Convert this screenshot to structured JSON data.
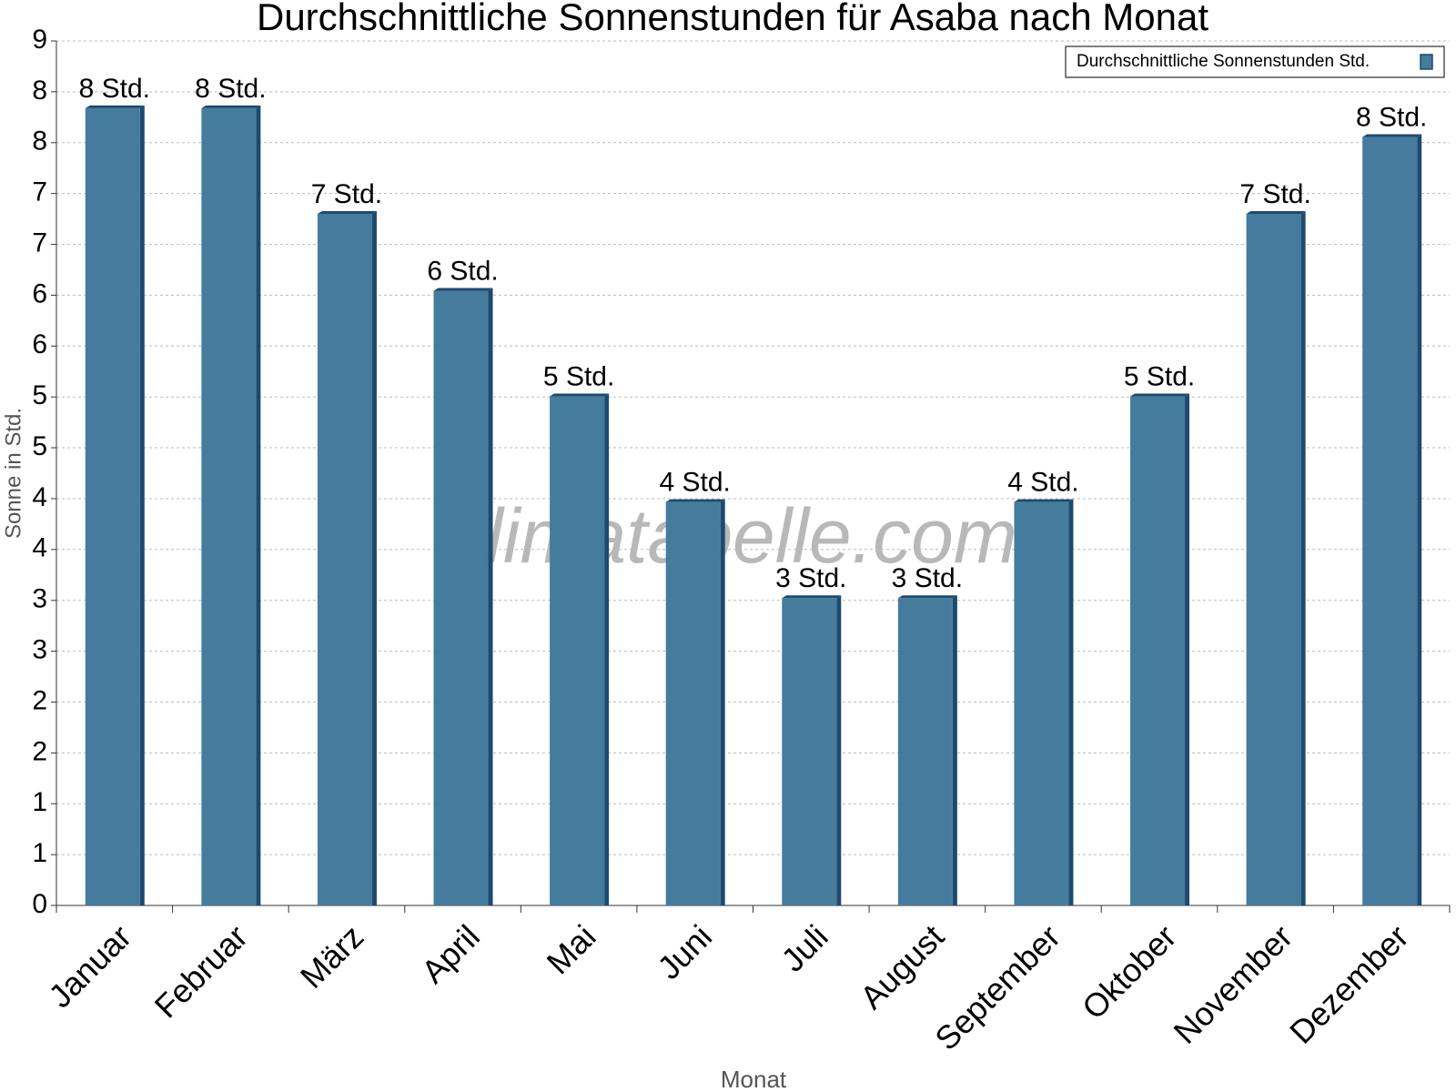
{
  "chart_data": {
    "type": "bar",
    "title": "Durchschnittliche Sonnenstunden für Asaba nach Monat",
    "x_label": "Monat",
    "y_label": "Sonne in Std.",
    "watermark": "klimatabelle.com",
    "categories": [
      "Januar",
      "Februar",
      "März",
      "April",
      "Mai",
      "Juni",
      "Juli",
      "August",
      "September",
      "Oktober",
      "November",
      "Dezember"
    ],
    "series": [
      {
        "name": "Durchschnittliche Sonnenstunden Std.",
        "color": "#457b9d",
        "values": [
          8.3,
          8.3,
          7.2,
          6.4,
          5.3,
          4.2,
          3.2,
          3.2,
          4.2,
          5.3,
          7.2,
          8.0
        ],
        "value_labels": [
          "8 Std.",
          "8 Std.",
          "7 Std.",
          "6 Std.",
          "5 Std.",
          "4 Std.",
          "3 Std.",
          "3 Std.",
          "4 Std.",
          "5 Std.",
          "7 Std.",
          "8 Std."
        ]
      }
    ],
    "ylim": [
      0,
      9
    ],
    "yticks": [
      0,
      {
        "value": 0.529,
        "label": "1"
      },
      {
        "value": 1.059,
        "label": "1"
      },
      {
        "value": 1.588,
        "label": "2"
      },
      {
        "value": 2.118,
        "label": "2"
      },
      {
        "value": 2.647,
        "label": "3"
      },
      {
        "value": 3.176,
        "label": "3"
      },
      {
        "value": 3.706,
        "label": "4"
      },
      {
        "value": 4.235,
        "label": "4"
      },
      {
        "value": 4.765,
        "label": "5"
      },
      {
        "value": 5.294,
        "label": "5"
      },
      {
        "value": 5.824,
        "label": "6"
      },
      {
        "value": 6.353,
        "label": "6"
      },
      {
        "value": 6.882,
        "label": "7"
      },
      {
        "value": 7.412,
        "label": "7"
      },
      {
        "value": 7.941,
        "label": "8"
      },
      {
        "value": 8.471,
        "label": "8"
      },
      9
    ],
    "grid": true,
    "legend": "top-right"
  }
}
